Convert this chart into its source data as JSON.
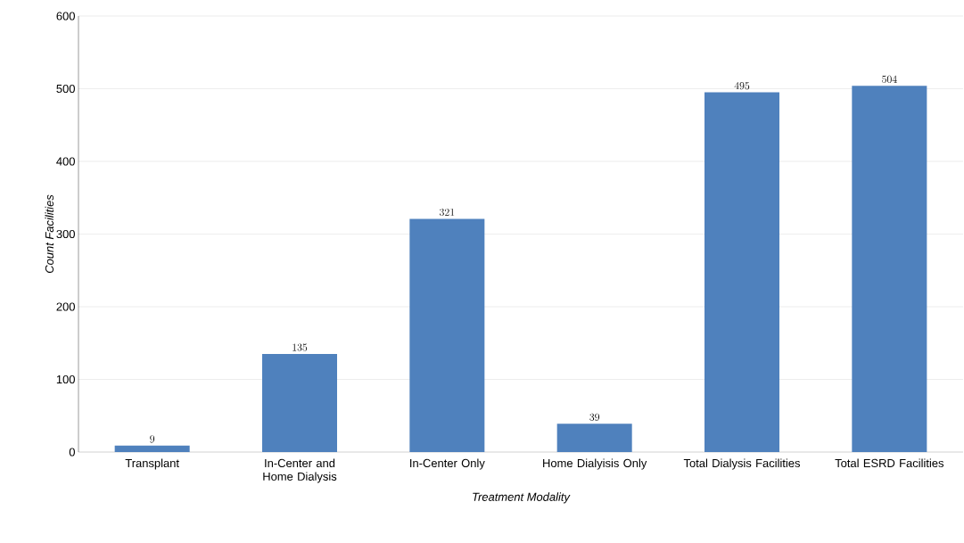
{
  "chart_data": {
    "type": "bar",
    "xlabel": "Treatment Modality",
    "ylabel": "Count Facilities",
    "categories": [
      "Transplant",
      "In-Center and Home Dialysis",
      "In-Center Only",
      "Home Dialyisis Only",
      "Total Dialysis Facilities",
      "Total ESRD Facilities"
    ],
    "values": [
      9,
      135,
      321,
      39,
      495,
      504
    ],
    "color": "#4f81bd",
    "ylim": [
      0,
      600
    ],
    "yticks": [
      0,
      100,
      200,
      300,
      400,
      500,
      600
    ],
    "grid": "y",
    "data_labels": true
  }
}
